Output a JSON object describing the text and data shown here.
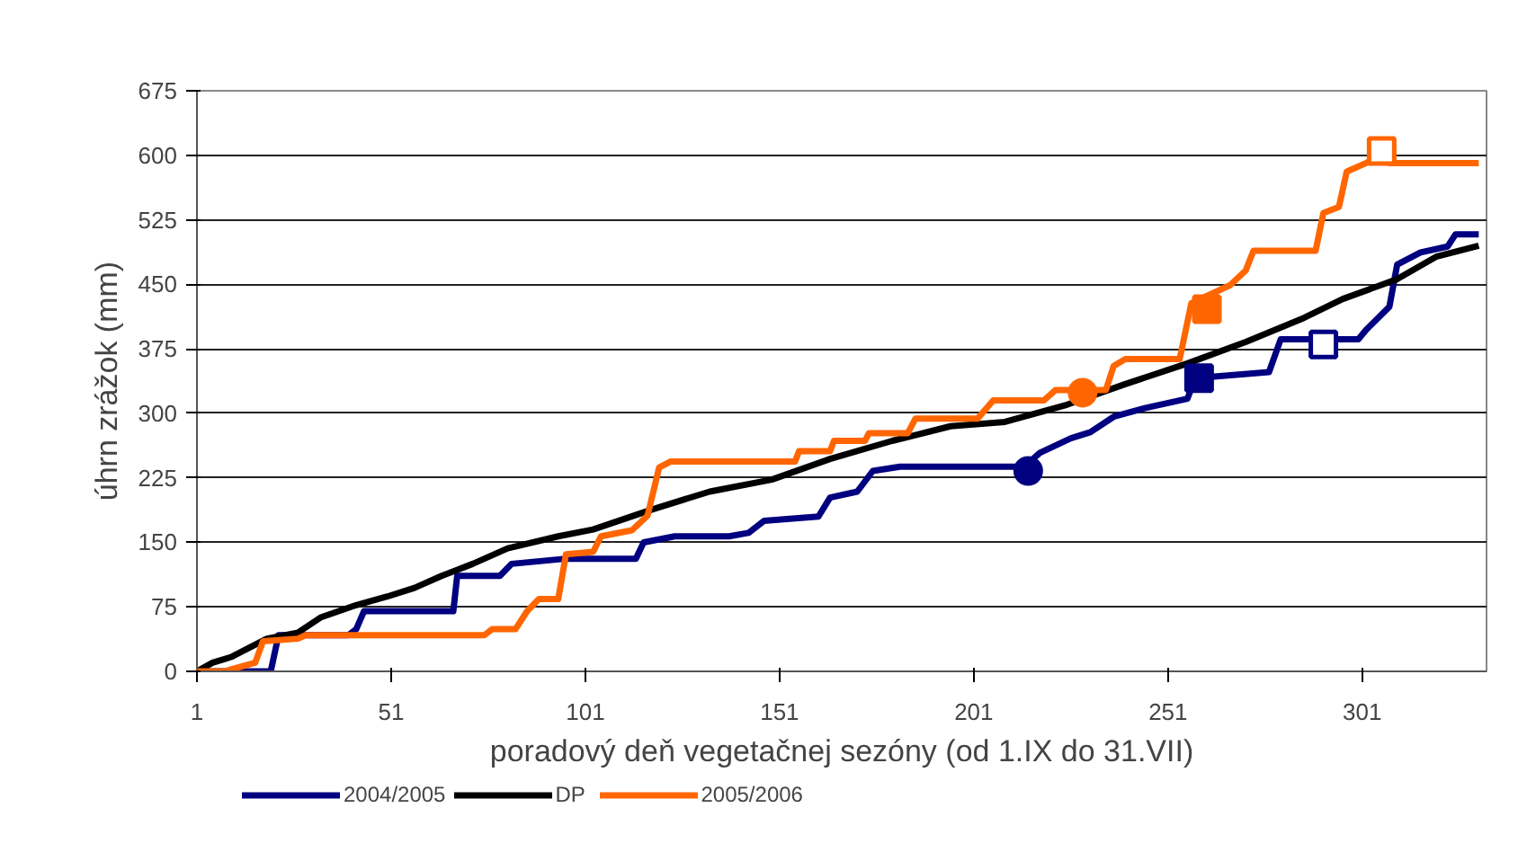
{
  "chart_data": {
    "type": "line",
    "xlabel": "poradový deň vegetačnej sezóny (od 1.IX do 31.VII)",
    "ylabel": "úhrn zrážok (mm)",
    "xlim": [
      1,
      333
    ],
    "xticks": [
      1,
      51,
      101,
      151,
      201,
      251,
      301
    ],
    "ylim": [
      0,
      675
    ],
    "yticks": [
      0,
      75,
      150,
      225,
      300,
      375,
      450,
      525,
      600,
      675
    ],
    "grid": "y",
    "legend": "bottom left",
    "line_style": "solid",
    "marker": "none",
    "series": [
      {
        "name": "2004/2005",
        "color": "#000080",
        "x": [
          1,
          10,
          20,
          22,
          40,
          42,
          44,
          67,
          68,
          79,
          82,
          96,
          112,
          114,
          116,
          124,
          138,
          143,
          147,
          161,
          164,
          171,
          175,
          182,
          214,
          218,
          226,
          231,
          237,
          245,
          256,
          258,
          277,
          280,
          300,
          302,
          308,
          310,
          316,
          323,
          325,
          331
        ],
        "values": [
          0,
          0,
          0,
          42,
          42,
          49,
          70,
          70,
          111,
          111,
          125,
          131,
          131,
          131,
          150,
          157,
          157,
          161,
          175,
          180,
          202,
          209,
          233,
          238,
          238,
          254,
          271,
          278,
          296,
          306,
          317,
          341,
          348,
          386,
          386,
          397,
          424,
          473,
          487,
          494,
          508,
          508
        ]
      },
      {
        "name": "DP",
        "color": "#000000",
        "x": [
          1,
          5,
          10,
          19,
          27,
          33,
          42,
          50,
          57,
          64,
          72,
          81,
          94,
          103,
          118,
          133,
          149,
          164,
          180,
          195,
          209,
          225,
          240,
          256,
          271,
          286,
          296,
          310,
          320,
          331
        ],
        "values": [
          0,
          10,
          17,
          38,
          45,
          63,
          77,
          87,
          97,
          111,
          125,
          143,
          157,
          165,
          188,
          209,
          223,
          247,
          268,
          285,
          290,
          310,
          334,
          358,
          383,
          411,
          433,
          456,
          482,
          495
        ]
      },
      {
        "name": "2005/2006",
        "color": "#ff6600",
        "x": [
          1,
          8,
          16,
          18,
          27,
          29,
          75,
          77,
          83,
          86,
          89,
          94,
          96,
          103,
          105,
          113,
          117,
          120,
          123,
          155,
          156,
          164,
          165,
          173,
          174,
          184,
          186,
          202,
          206,
          219,
          222,
          226,
          235,
          237,
          240,
          254,
          257,
          267,
          271,
          273,
          289,
          291,
          295,
          297,
          302,
          305,
          308,
          331
        ],
        "values": [
          0,
          0,
          10,
          35,
          38,
          42,
          42,
          49,
          49,
          70,
          84,
          84,
          136,
          139,
          157,
          164,
          181,
          237,
          244,
          244,
          256,
          256,
          268,
          268,
          277,
          277,
          294,
          294,
          315,
          315,
          327,
          327,
          327,
          355,
          363,
          363,
          428,
          449,
          466,
          489,
          489,
          533,
          540,
          581,
          591,
          598,
          591,
          591
        ]
      },
      {
        "type": "scatter",
        "marker": "circle",
        "color": "#000080",
        "x": [
          215
        ],
        "values": [
          233
        ]
      },
      {
        "type": "scatter",
        "marker": "square",
        "color": "#000080",
        "x": [
          259
        ],
        "values": [
          341
        ]
      },
      {
        "type": "scatter",
        "marker": "square_open",
        "color": "#000080",
        "x": [
          291
        ],
        "values": [
          380
        ]
      },
      {
        "type": "scatter",
        "marker": "circle",
        "color": "#ff6600",
        "x": [
          229
        ],
        "values": [
          324
        ]
      },
      {
        "type": "scatter",
        "marker": "square",
        "color": "#ff6600",
        "x": [
          261
        ],
        "values": [
          421
        ]
      },
      {
        "type": "scatter",
        "marker": "square_open",
        "color": "#ff6600",
        "x": [
          306
        ],
        "values": [
          605
        ]
      }
    ]
  }
}
